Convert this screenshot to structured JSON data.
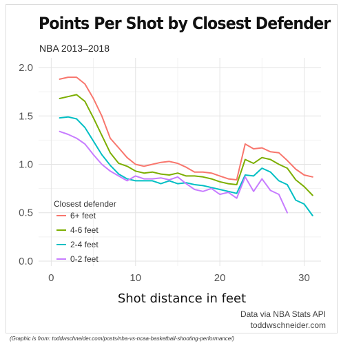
{
  "title": "Points Per Shot by Closest Defender",
  "subtitle": "NBA 2013–2018",
  "source_line1": "Data via NBA Stats API",
  "source_line2": "toddwschneider.com",
  "caption": "(Graphic is from: toddwschneider.com/posts/nba-vs-ncaa-basketball-shooting-performance/)",
  "chart_data": {
    "type": "line",
    "title": "Points Per Shot by Closest Defender",
    "subtitle": "NBA 2013–2018",
    "xlabel": "Shot distance in feet",
    "ylabel": "",
    "xlim": [
      -1.5,
      32
    ],
    "ylim": [
      -0.05,
      2.1
    ],
    "xticks": [
      0,
      10,
      20,
      30
    ],
    "yticks": [
      0.0,
      0.5,
      1.0,
      1.5,
      2.0
    ],
    "ytick_labels": [
      "0.0",
      "0.5",
      "1.0",
      "1.5",
      "2.0"
    ],
    "grid": true,
    "legend_title": "Closest defender",
    "legend_position": "bottom-left",
    "series": [
      {
        "name": "6+ feet",
        "color": "#f8766d",
        "x": [
          1,
          2,
          3,
          4,
          5,
          6,
          7,
          8,
          9,
          10,
          11,
          12,
          13,
          14,
          15,
          16,
          17,
          18,
          19,
          20,
          21,
          22,
          23,
          24,
          25,
          26,
          27,
          28,
          29,
          30,
          31
        ],
        "y": [
          1.88,
          1.9,
          1.9,
          1.83,
          1.68,
          1.5,
          1.27,
          1.17,
          1.07,
          1.0,
          0.98,
          1.0,
          1.02,
          1.03,
          1.01,
          0.97,
          0.92,
          0.92,
          0.91,
          0.88,
          0.85,
          0.84,
          1.21,
          1.16,
          1.17,
          1.13,
          1.12,
          1.04,
          0.95,
          0.89,
          0.87
        ]
      },
      {
        "name": "4-6 feet",
        "color": "#7cae00",
        "x": [
          1,
          2,
          3,
          4,
          5,
          6,
          7,
          8,
          9,
          10,
          11,
          12,
          13,
          14,
          15,
          16,
          17,
          18,
          19,
          20,
          21,
          22,
          23,
          24,
          25,
          26,
          27,
          28,
          29,
          30,
          31
        ],
        "y": [
          1.68,
          1.7,
          1.72,
          1.65,
          1.48,
          1.3,
          1.12,
          1.01,
          0.98,
          0.93,
          0.91,
          0.92,
          0.9,
          0.89,
          0.91,
          0.88,
          0.88,
          0.87,
          0.85,
          0.82,
          0.8,
          0.79,
          1.05,
          1.01,
          1.07,
          1.05,
          1.0,
          0.96,
          0.84,
          0.77,
          0.68
        ]
      },
      {
        "name": "2-4 feet",
        "color": "#00bfc4",
        "x": [
          1,
          2,
          3,
          4,
          5,
          6,
          7,
          8,
          9,
          10,
          11,
          12,
          13,
          14,
          15,
          16,
          17,
          18,
          19,
          20,
          21,
          22,
          23,
          24,
          25,
          26,
          27,
          28,
          29,
          30,
          31
        ],
        "y": [
          1.48,
          1.49,
          1.47,
          1.38,
          1.24,
          1.1,
          0.99,
          0.9,
          0.85,
          0.83,
          0.83,
          0.83,
          0.8,
          0.83,
          0.8,
          0.81,
          0.79,
          0.78,
          0.76,
          0.74,
          0.72,
          0.7,
          0.89,
          0.88,
          0.96,
          0.92,
          0.83,
          0.79,
          0.63,
          0.59,
          0.47
        ]
      },
      {
        "name": "0-2 feet",
        "color": "#c77cff",
        "x": [
          1,
          2,
          3,
          4,
          5,
          6,
          7,
          8,
          9,
          10,
          11,
          12,
          13,
          14,
          15,
          16,
          17,
          18,
          19,
          20,
          21,
          22,
          23,
          24,
          25,
          26,
          27,
          28
        ],
        "y": [
          1.34,
          1.31,
          1.27,
          1.21,
          1.1,
          1.0,
          0.93,
          0.88,
          0.83,
          0.88,
          0.85,
          0.85,
          0.86,
          0.84,
          0.87,
          0.8,
          0.74,
          0.72,
          0.75,
          0.69,
          0.71,
          0.65,
          0.87,
          0.72,
          0.85,
          0.73,
          0.69,
          0.5
        ]
      }
    ]
  }
}
